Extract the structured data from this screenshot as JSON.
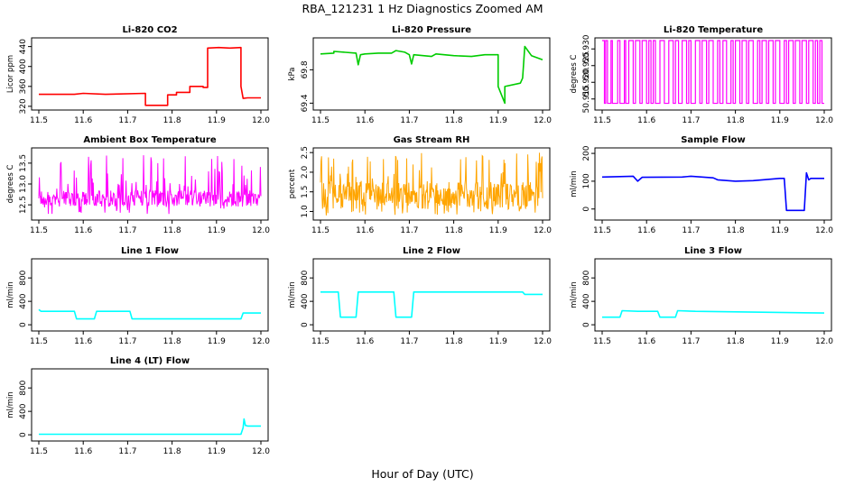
{
  "figure": {
    "title": "RBA_121231  1 Hz Diagnostics Zoomed AM",
    "xlabel": "Hour of Day (UTC)"
  },
  "chart_data": [
    {
      "type": "line",
      "title": "Li-820 CO2",
      "ylabel": "Licor ppm",
      "color": "#ff0000",
      "xlim": [
        11.5,
        12.0
      ],
      "ylim": [
        318,
        452
      ],
      "xticks": [
        "11.5",
        "11.6",
        "11.7",
        "11.8",
        "11.9",
        "12.0"
      ],
      "yticks": [
        "320",
        "360",
        "400",
        "440"
      ],
      "series": [
        {
          "x": [
            11.5,
            11.58,
            11.6,
            11.65,
            11.74,
            11.74,
            11.79,
            11.79,
            11.81,
            11.81,
            11.84,
            11.84,
            11.87,
            11.87,
            11.88,
            11.88,
            11.905,
            11.93,
            11.955,
            11.955,
            11.96,
            11.97,
            12.0
          ],
          "y": [
            344,
            344,
            346,
            344,
            346,
            322,
            322,
            343,
            343,
            348,
            348,
            360,
            360,
            358,
            358,
            437,
            438,
            437,
            438,
            360,
            336,
            337,
            337
          ]
        }
      ]
    },
    {
      "type": "line",
      "title": "Li-820 Pressure",
      "ylabel": "kPa",
      "color": "#00cc00",
      "xlim": [
        11.5,
        12.0
      ],
      "ylim": [
        69.35,
        70.15
      ],
      "xticks": [
        "11.5",
        "11.6",
        "11.7",
        "11.8",
        "11.9",
        "12.0"
      ],
      "yticks": [
        "69.4",
        "69.8"
      ],
      "series": [
        {
          "x": [
            11.5,
            11.53,
            11.53,
            11.58,
            11.585,
            11.59,
            11.6,
            11.63,
            11.66,
            11.67,
            11.69,
            11.7,
            11.705,
            11.71,
            11.75,
            11.76,
            11.8,
            11.84,
            11.87,
            11.9,
            11.9,
            11.915,
            11.915,
            11.95,
            11.955,
            11.96,
            11.975,
            12.0
          ],
          "y": [
            69.99,
            70.0,
            70.02,
            70.0,
            69.86,
            69.98,
            69.99,
            70.0,
            70.0,
            70.03,
            70.01,
            69.98,
            69.87,
            69.98,
            69.96,
            69.99,
            69.97,
            69.96,
            69.98,
            69.98,
            69.6,
            69.4,
            69.6,
            69.64,
            69.7,
            70.08,
            69.97,
            69.92
          ]
        }
      ]
    },
    {
      "type": "line",
      "title": "Li-820 Temperature",
      "ylabel": "degrees C",
      "color": "#ff00ff",
      "xlim": [
        11.5,
        12.0
      ],
      "ylim": [
        50.9125,
        50.9325
      ],
      "xticks": [
        "11.5",
        "11.6",
        "11.7",
        "11.8",
        "11.9",
        "12.0"
      ],
      "yticks": [
        "50.915",
        "50.920",
        "50.925",
        "50.930"
      ],
      "levels": [
        50.9137,
        50.9325
      ],
      "switch_points": [
        11.505,
        11.508,
        11.512,
        11.52,
        11.523,
        11.535,
        11.54,
        11.55,
        11.553,
        11.56,
        11.57,
        11.575,
        11.585,
        11.59,
        11.6,
        11.605,
        11.61,
        11.615,
        11.62,
        11.63,
        11.64,
        11.65,
        11.66,
        11.665,
        11.672,
        11.68,
        11.69,
        11.695,
        11.7,
        11.71,
        11.72,
        11.725,
        11.735,
        11.74,
        11.75,
        11.76,
        11.765,
        11.772,
        11.78,
        11.79,
        11.795,
        11.8,
        11.81,
        11.815,
        11.825,
        11.83,
        11.84,
        11.85,
        11.855,
        11.86,
        11.87,
        11.875,
        11.885,
        11.89,
        11.9,
        11.91,
        11.915,
        11.92,
        11.93,
        11.935,
        11.945,
        11.95,
        11.96,
        11.965,
        11.975,
        11.98,
        11.985,
        11.99,
        11.995
      ]
    },
    {
      "type": "line",
      "title": "Ambient Box Temperature",
      "ylabel": "degrees C",
      "color": "#ff00ff",
      "xlim": [
        11.5,
        12.0
      ],
      "ylim": [
        12.2,
        13.8
      ],
      "xticks": [
        "11.5",
        "11.6",
        "11.7",
        "11.8",
        "11.9",
        "12.0"
      ],
      "yticks": [
        "12.5",
        "13.0",
        "13.5"
      ],
      "band": {
        "low": 12.45,
        "high": 12.85,
        "min": 12.25,
        "max": 13.7
      }
    },
    {
      "type": "line",
      "title": "Gas Stream RH",
      "ylabel": "percent",
      "color": "#ffa500",
      "xlim": [
        11.5,
        12.0
      ],
      "ylim": [
        0.85,
        2.55
      ],
      "xticks": [
        "11.5",
        "11.6",
        "11.7",
        "11.8",
        "11.9",
        "12.0"
      ],
      "yticks": [
        "1.0",
        "1.5",
        "2.0",
        "2.5"
      ],
      "band": {
        "low": 1.05,
        "high": 1.75,
        "min": 0.9,
        "max": 2.5
      }
    },
    {
      "type": "line",
      "title": "Sample Flow",
      "ylabel": "ml/min",
      "color": "#0000ff",
      "xlim": [
        11.5,
        12.0
      ],
      "ylim": [
        -30,
        210
      ],
      "xticks": [
        "11.5",
        "11.6",
        "11.7",
        "11.8",
        "11.9",
        "12.0"
      ],
      "yticks": [
        "0",
        "100",
        "200"
      ],
      "series": [
        {
          "x": [
            11.5,
            11.57,
            11.58,
            11.59,
            11.68,
            11.7,
            11.75,
            11.76,
            11.8,
            11.84,
            11.9,
            11.91,
            11.915,
            11.955,
            11.96,
            11.965,
            11.97,
            12.0
          ],
          "y": [
            115,
            118,
            100,
            114,
            115,
            118,
            112,
            105,
            100,
            102,
            110,
            110,
            -5,
            -5,
            130,
            105,
            110,
            110
          ]
        }
      ]
    },
    {
      "type": "line",
      "title": "Line 1 Flow",
      "ylabel": "ml/min",
      "color": "#00ffff",
      "xlim": [
        11.5,
        12.0
      ],
      "ylim": [
        -60,
        1080
      ],
      "xticks": [
        "11.5",
        "11.6",
        "11.7",
        "11.8",
        "11.9",
        "12.0"
      ],
      "yticks": [
        "0",
        "400",
        "800"
      ],
      "series": [
        {
          "x": [
            11.5,
            11.505,
            11.58,
            11.585,
            11.625,
            11.63,
            11.705,
            11.71,
            11.75,
            11.955,
            11.96,
            12.0
          ],
          "y": [
            260,
            230,
            230,
            100,
            100,
            230,
            230,
            100,
            100,
            100,
            200,
            200
          ]
        }
      ]
    },
    {
      "type": "line",
      "title": "Line 2 Flow",
      "ylabel": "ml/min",
      "color": "#00ffff",
      "xlim": [
        11.5,
        12.0
      ],
      "ylim": [
        -60,
        1080
      ],
      "xticks": [
        "11.5",
        "11.6",
        "11.7",
        "11.8",
        "11.9",
        "12.0"
      ],
      "yticks": [
        "0",
        "400",
        "800"
      ],
      "series": [
        {
          "x": [
            11.5,
            11.54,
            11.545,
            11.58,
            11.585,
            11.665,
            11.67,
            11.705,
            11.71,
            11.955,
            11.96,
            12.0
          ],
          "y": [
            560,
            560,
            130,
            130,
            560,
            560,
            130,
            130,
            560,
            560,
            520,
            520
          ]
        }
      ]
    },
    {
      "type": "line",
      "title": "Line 3 Flow",
      "ylabel": "ml/min",
      "color": "#00ffff",
      "xlim": [
        11.5,
        12.0
      ],
      "ylim": [
        -60,
        1080
      ],
      "xticks": [
        "11.5",
        "11.6",
        "11.7",
        "11.8",
        "11.9",
        "12.0"
      ],
      "yticks": [
        "0",
        "400",
        "800"
      ],
      "series": [
        {
          "x": [
            11.5,
            11.54,
            11.545,
            11.58,
            11.625,
            11.63,
            11.665,
            11.67,
            11.71,
            12.0
          ],
          "y": [
            130,
            130,
            240,
            230,
            230,
            130,
            130,
            240,
            230,
            200
          ]
        }
      ]
    },
    {
      "type": "line",
      "title": "Line 4 (LT) Flow",
      "ylabel": "ml/min",
      "color": "#00ffff",
      "xlim": [
        11.5,
        12.0
      ],
      "ylim": [
        -60,
        1080
      ],
      "xticks": [
        "11.5",
        "11.6",
        "11.7",
        "11.8",
        "11.9",
        "12.0"
      ],
      "yticks": [
        "0",
        "400",
        "800"
      ],
      "series": [
        {
          "x": [
            11.5,
            11.955,
            11.96,
            11.962,
            11.965,
            11.97,
            12.0
          ],
          "y": [
            10,
            10,
            120,
            270,
            160,
            150,
            150
          ]
        }
      ]
    }
  ]
}
